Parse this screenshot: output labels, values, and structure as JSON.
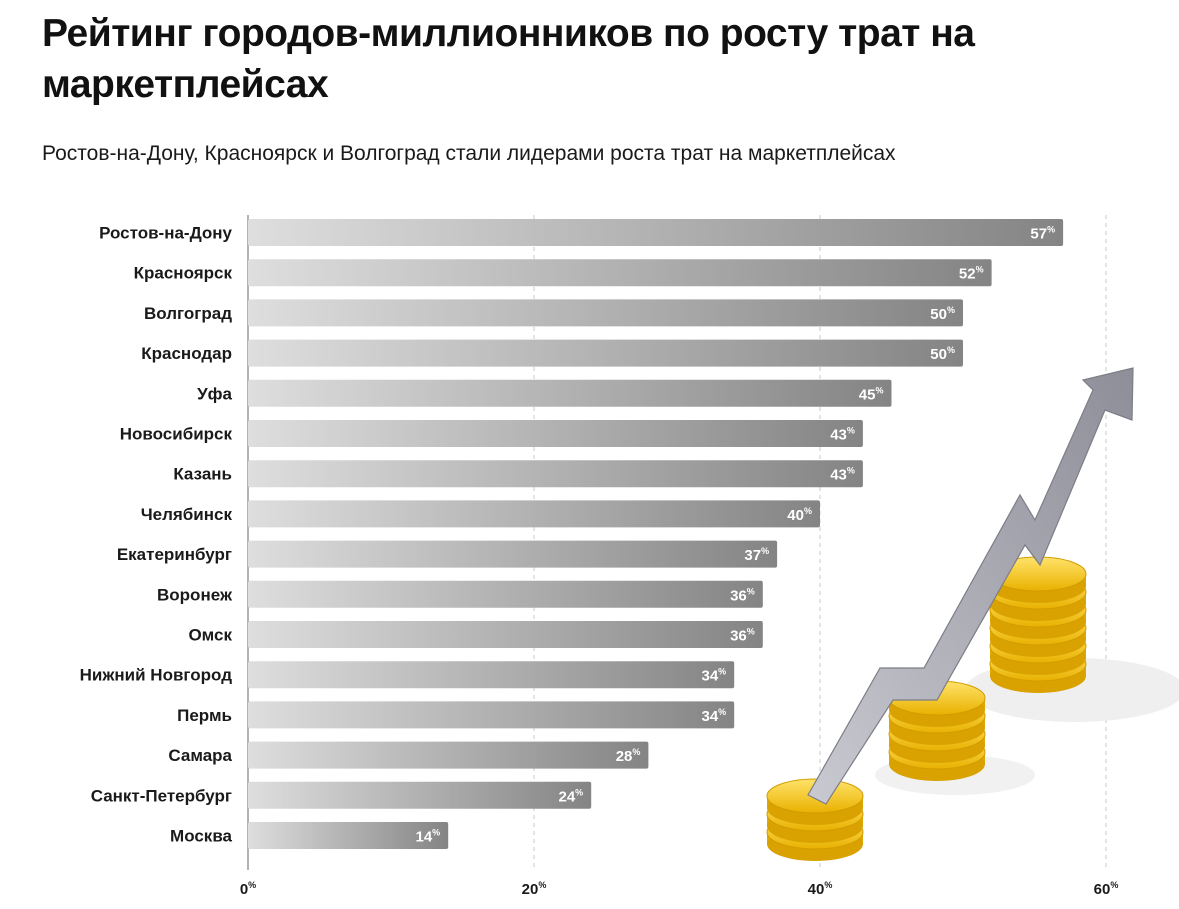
{
  "header": {
    "title": "Рейтинг городов-миллионников по росту трат на маркетплейсах",
    "subtitle": "Ростов-на-Дону, Красноярск и Волгоград стали лидерами роста трат на маркетплейсах"
  },
  "chart_data": {
    "type": "bar",
    "orientation": "horizontal",
    "title": "Рейтинг городов-миллионников по росту трат на маркетплейсах",
    "subtitle": "Ростов-на-Дону, Красноярск и Волгоград стали лидерами роста трат на маркетплейсах",
    "categories": [
      "Ростов-на-Дону",
      "Красноярск",
      "Волгоград",
      "Краснодар",
      "Уфа",
      "Новосибирск",
      "Казань",
      "Челябинск",
      "Екатеринбург",
      "Воронеж",
      "Омск",
      "Нижний Новгород",
      "Пермь",
      "Самара",
      "Санкт-Петербург",
      "Москва"
    ],
    "values": [
      57,
      52,
      50,
      50,
      45,
      43,
      43,
      40,
      37,
      36,
      36,
      34,
      34,
      28,
      24,
      14
    ],
    "unit": "%",
    "xlim": [
      0,
      60
    ],
    "xticks": [
      0,
      20,
      40,
      60
    ],
    "grid": true,
    "legend": "none",
    "colors": {
      "bar_light": "#d9d9d9",
      "bar_dark": "#8a8a8a",
      "label": "#ffffff",
      "coin": "#f2c21b",
      "arrow": "#a9a9b3"
    }
  }
}
